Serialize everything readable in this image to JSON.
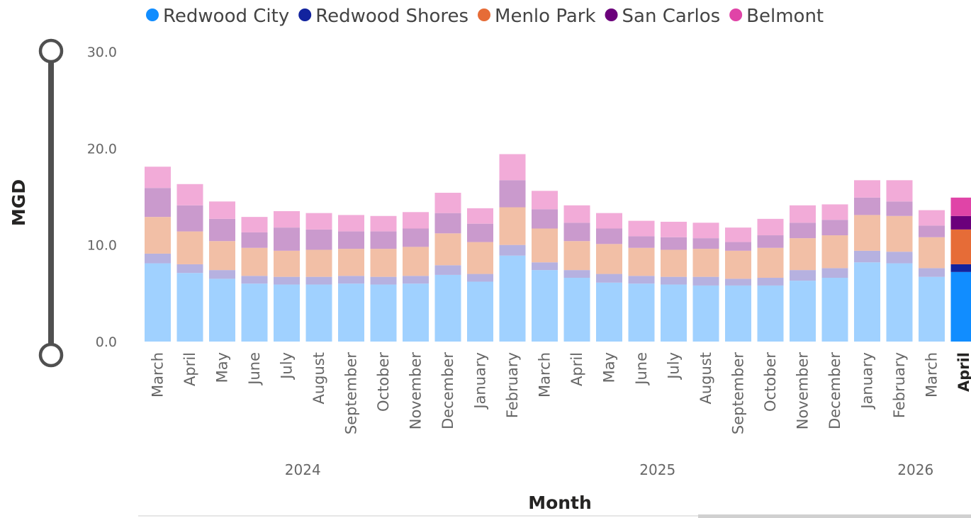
{
  "chart_data": {
    "type": "bar",
    "stacked": true,
    "ylabel": "MGD",
    "xlabel": "Month",
    "ylim": [
      0,
      30
    ],
    "yticks": [
      "0.0",
      "10.0",
      "20.0",
      "30.0"
    ],
    "legend_position": "top",
    "categories": [
      "March",
      "April",
      "May",
      "June",
      "July",
      "August",
      "September",
      "October",
      "November",
      "December",
      "January",
      "February",
      "March",
      "April",
      "May",
      "June",
      "July",
      "August",
      "September",
      "October",
      "November",
      "December",
      "January",
      "February",
      "March",
      "April"
    ],
    "year_labels": [
      {
        "label": "2024",
        "start_index": 0,
        "end_index": 9
      },
      {
        "label": "2025",
        "start_index": 10,
        "end_index": 21
      },
      {
        "label": "2026",
        "start_index": 22,
        "end_index": 25
      }
    ],
    "highlighted_index": 25,
    "series": [
      {
        "name": "Redwood City",
        "color": "#118DFF",
        "faded_color": "#A0D1FF",
        "values": [
          8.1,
          7.1,
          6.5,
          6.0,
          5.9,
          5.9,
          6.0,
          5.9,
          6.0,
          6.9,
          6.2,
          8.9,
          7.4,
          6.6,
          6.1,
          6.0,
          5.9,
          5.8,
          5.8,
          5.8,
          6.3,
          6.6,
          8.2,
          8.1,
          6.7,
          7.2
        ]
      },
      {
        "name": "Redwood Shores",
        "color": "#12239E",
        "faded_color": "#B6B1E0",
        "values": [
          1.0,
          0.9,
          0.9,
          0.8,
          0.8,
          0.8,
          0.8,
          0.8,
          0.8,
          1.0,
          0.8,
          1.1,
          0.8,
          0.8,
          0.9,
          0.8,
          0.8,
          0.9,
          0.7,
          0.8,
          1.1,
          1.0,
          1.2,
          1.2,
          0.9,
          0.8
        ]
      },
      {
        "name": "Menlo Park",
        "color": "#E66C37",
        "faded_color": "#F2BFA6",
        "values": [
          3.8,
          3.4,
          3.0,
          2.9,
          2.7,
          2.8,
          2.8,
          2.9,
          3.0,
          3.3,
          3.3,
          3.9,
          3.5,
          3.0,
          3.1,
          2.9,
          2.8,
          2.9,
          2.9,
          3.1,
          3.3,
          3.4,
          3.7,
          3.7,
          3.2,
          3.6
        ]
      },
      {
        "name": "San Carlos",
        "color": "#6B007B",
        "faded_color": "#CA9ACD",
        "values": [
          3.0,
          2.7,
          2.3,
          1.6,
          2.4,
          2.1,
          1.8,
          1.8,
          1.9,
          2.1,
          1.9,
          2.8,
          2.0,
          1.9,
          1.6,
          1.2,
          1.3,
          1.1,
          0.9,
          1.3,
          1.6,
          1.6,
          1.8,
          1.5,
          1.2,
          1.4
        ]
      },
      {
        "name": "Belmont",
        "color": "#E044A7",
        "faded_color": "#F2ABD8",
        "values": [
          2.2,
          2.2,
          1.8,
          1.6,
          1.7,
          1.7,
          1.7,
          1.6,
          1.7,
          2.1,
          1.6,
          2.7,
          1.9,
          1.8,
          1.6,
          1.6,
          1.6,
          1.6,
          1.5,
          1.7,
          1.8,
          1.6,
          1.8,
          2.2,
          1.6,
          1.9
        ]
      }
    ]
  }
}
